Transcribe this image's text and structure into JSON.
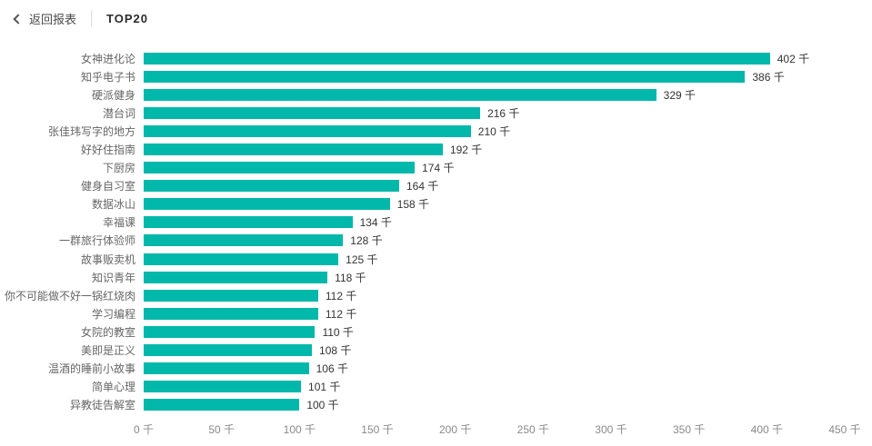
{
  "header": {
    "back_label": "返回报表",
    "tab_label": "TOP20"
  },
  "colors": {
    "bar": "#01B8AA",
    "category_label": "#666666",
    "value_label": "#333333",
    "tick_label": "#8a8a8a"
  },
  "chart_data": {
    "type": "bar",
    "orientation": "horizontal",
    "title": "TOP20",
    "unit": "千",
    "grid": false,
    "legend": "none",
    "categories": [
      "女神进化论",
      "知乎电子书",
      "硬派健身",
      "潜台词",
      "张佳玮写字的地方",
      "好好住指南",
      "下厨房",
      "健身自习室",
      "数据冰山",
      "幸福课",
      "一群旅行体验师",
      "故事贩卖机",
      "知识青年",
      "你不可能做不好一锅红烧肉",
      "学习编程",
      "女院的教室",
      "美即是正义",
      "温酒的睡前小故事",
      "简单心理",
      "异教徒告解室"
    ],
    "values": [
      402,
      386,
      329,
      216,
      210,
      192,
      174,
      164,
      158,
      134,
      128,
      125,
      118,
      112,
      112,
      110,
      108,
      106,
      101,
      100
    ],
    "value_labels": [
      "402 千",
      "386 千",
      "329 千",
      "216 千",
      "210 千",
      "192 千",
      "174 千",
      "164 千",
      "158 千",
      "134 千",
      "128 千",
      "125 千",
      "118 千",
      "112 千",
      "112 千",
      "110 千",
      "108 千",
      "106 千",
      "101 千",
      "100 千"
    ],
    "xlim": [
      0,
      450
    ],
    "x_ticks": [
      0,
      50,
      100,
      150,
      200,
      250,
      300,
      350,
      400,
      450
    ],
    "x_tick_labels": [
      "0 千",
      "50 千",
      "100 千",
      "150 千",
      "200 千",
      "250 千",
      "300 千",
      "350 千",
      "400 千",
      "450 千"
    ]
  }
}
